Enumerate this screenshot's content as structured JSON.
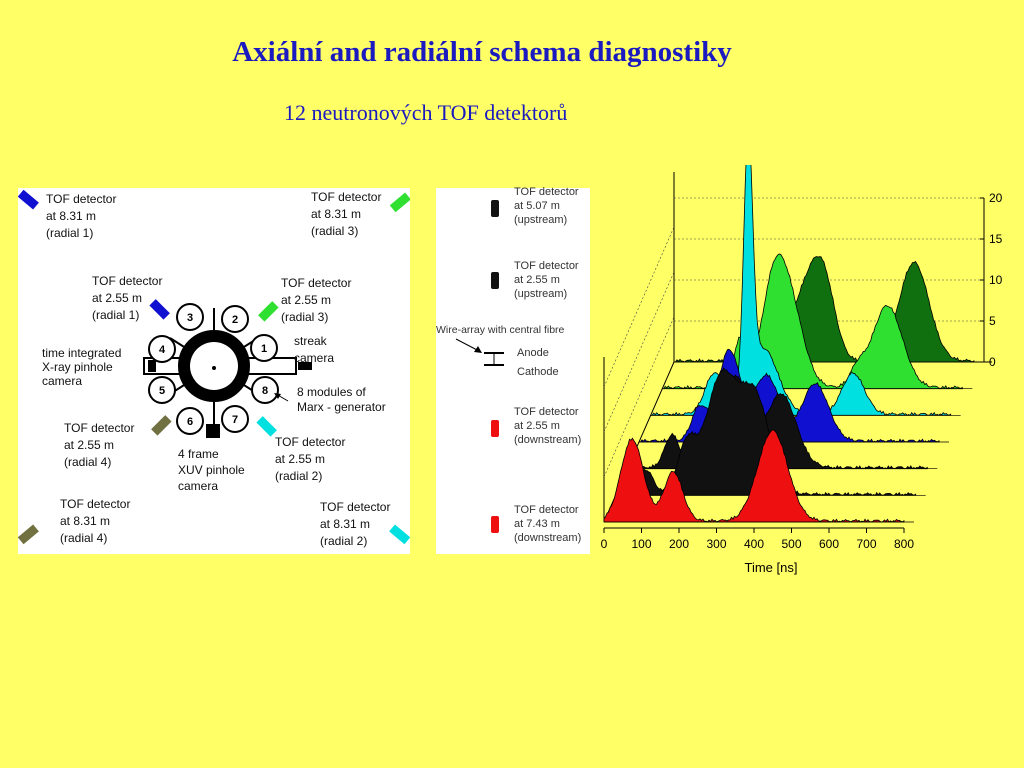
{
  "slide": {
    "title": "Axiální and radiální schema diagnostiky",
    "subtitle": "12 neutronových TOF detektorů"
  },
  "radial_diagram": {
    "labels": {
      "tof_831_r1": "TOF detector\nat 8.31 m\n(radial 1)",
      "tof_831_r3": "TOF detector\nat 8.31 m\n(radial 3)",
      "tof_255_r1": "TOF detector\nat 2.55 m\n(radial 1)",
      "tof_255_r3": "TOF detector\nat 2.55 m\n(radial 3)",
      "xray_pinhole": "time integrated\nX-ray pinhole\ncamera",
      "streak": "streak\ncamera",
      "marx": "8 modules of\nMarx - generator",
      "tof_255_r4": "TOF detector\nat 2.55 m\n(radial 4)",
      "xuv": "4 frame\nXUV pinhole\ncamera",
      "tof_255_r2": "TOF detector\nat 2.55 m\n(radial 2)",
      "tof_831_r4": "TOF detector\nat 8.31 m\n(radial 4)",
      "tof_831_r2": "TOF detector\nat 8.31 m\n(radial 2)"
    },
    "module_numbers": [
      "1",
      "2",
      "3",
      "4",
      "5",
      "6",
      "7",
      "8"
    ],
    "detector_colors": {
      "radial1": "#1010d0",
      "radial2": "#00e0e0",
      "radial3": "#30e030",
      "radial4": "#707040"
    }
  },
  "axial_diagram": {
    "labels": {
      "tof_507_up": "TOF detector\nat 5.07 m\n(upstream)",
      "tof_255_up": "TOF detector\nat 2.55 m\n(upstream)",
      "wire_array": "Wire-array with central fibre",
      "anode": "Anode",
      "cathode": "Cathode",
      "tof_255_down": "TOF detector\nat 2.55 m\n(downstream)",
      "tof_743_down": "TOF detector\nat 7.43 m\n(downstream)"
    },
    "detector_colors": {
      "upstream": "#111111",
      "downstream": "#ee1010"
    }
  },
  "chart_data": {
    "type": "line",
    "subtype": "3d-waterfall",
    "xlabel": "Time [ns]",
    "x_ticks": [
      "0",
      "100",
      "200",
      "300",
      "400",
      "500",
      "600",
      "700",
      "800"
    ],
    "xlim": [
      0,
      800
    ],
    "z_ticks": [
      "0",
      "5",
      "10",
      "15",
      "20"
    ],
    "zlim": [
      0,
      20
    ],
    "series": [
      {
        "color": "#ee1010",
        "peaks": [
          [
            75,
            10,
            30
          ],
          [
            185,
            6,
            25
          ],
          [
            450,
            11,
            40
          ]
        ]
      },
      {
        "color": "#111111",
        "peaks": [
          [
            80,
            3,
            20
          ],
          [
            190,
            6,
            25
          ],
          [
            280,
            14,
            40
          ],
          [
            370,
            12,
            40
          ]
        ]
      },
      {
        "color": "#111111",
        "peaks": [
          [
            120,
            4,
            20
          ],
          [
            220,
            5,
            20
          ],
          [
            290,
            11,
            35
          ],
          [
            410,
            9,
            40
          ]
        ]
      },
      {
        "color": "#1010d0",
        "peaks": [
          [
            160,
            4,
            20
          ],
          [
            240,
            11,
            30
          ],
          [
            340,
            8,
            35
          ],
          [
            470,
            7,
            35
          ]
        ]
      },
      {
        "color": "#00e0e0",
        "peaks": [
          [
            170,
            5,
            25
          ],
          [
            260,
            30,
            12
          ],
          [
            300,
            8,
            40
          ],
          [
            540,
            5,
            30
          ]
        ]
      },
      {
        "color": "#30e030",
        "peaks": [
          [
            210,
            6,
            20
          ],
          [
            290,
            7,
            30
          ],
          [
            330,
            12,
            40
          ],
          [
            520,
            2,
            20
          ],
          [
            600,
            10,
            40
          ]
        ]
      },
      {
        "color": "#107010",
        "peaks": [
          [
            270,
            6,
            25
          ],
          [
            350,
            8,
            35
          ],
          [
            400,
            9,
            30
          ],
          [
            640,
            12,
            40
          ]
        ]
      }
    ]
  }
}
